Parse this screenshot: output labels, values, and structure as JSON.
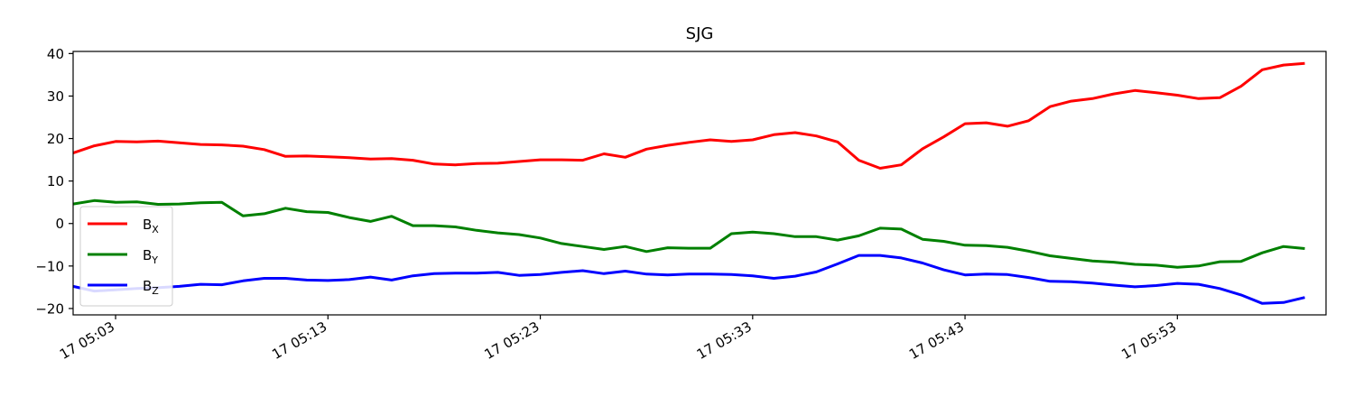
{
  "chart_data": {
    "type": "line",
    "title": "SJG",
    "xlabel": "",
    "ylabel": "",
    "x_start": "17 05:01",
    "x_end": "17 06:00",
    "x_step_minutes": 1,
    "xlim": [
      "17 05:01",
      "17 06:00"
    ],
    "ylim": [
      -21.5,
      40.5
    ],
    "x_tick_labels": [
      "17 05:03",
      "17 05:13",
      "17 05:23",
      "17 05:33",
      "17 05:43",
      "17 05:53"
    ],
    "y_ticks": [
      -20,
      -10,
      0,
      10,
      20,
      30,
      40
    ],
    "legend": {
      "location": "center-left"
    },
    "grid": false,
    "series": [
      {
        "name": "B",
        "subscript": "X",
        "color": "#ff0000",
        "values": [
          16.6,
          18.3,
          19.3,
          19.2,
          19.4,
          19.0,
          18.6,
          18.5,
          18.2,
          17.4,
          15.8,
          15.9,
          15.7,
          15.5,
          15.2,
          15.3,
          14.9,
          14.0,
          13.8,
          14.1,
          14.2,
          14.6,
          15.0,
          15.0,
          14.9,
          16.4,
          15.6,
          17.5,
          18.4,
          19.1,
          19.7,
          19.3,
          19.7,
          20.9,
          21.4,
          20.6,
          19.2,
          14.9,
          13.0,
          13.8,
          17.6,
          20.4,
          23.5,
          23.7,
          22.9,
          24.2,
          27.5,
          28.8,
          29.4,
          30.5,
          31.3,
          30.8,
          30.2,
          29.4,
          29.6,
          32.3,
          36.2,
          37.3,
          37.7
        ]
      },
      {
        "name": "B",
        "subscript": "Y",
        "color": "#008000",
        "values": [
          4.6,
          5.4,
          5.0,
          5.1,
          4.5,
          4.6,
          4.9,
          5.0,
          1.8,
          2.3,
          3.6,
          2.8,
          2.6,
          1.4,
          0.5,
          1.7,
          -0.5,
          -0.5,
          -0.8,
          -1.6,
          -2.2,
          -2.6,
          -3.4,
          -4.7,
          -5.4,
          -6.1,
          -5.4,
          -6.6,
          -5.7,
          -5.8,
          -5.8,
          -2.4,
          -2.0,
          -2.4,
          -3.1,
          -3.1,
          -3.9,
          -2.9,
          -1.1,
          -1.3,
          -3.7,
          -4.2,
          -5.1,
          -5.2,
          -5.6,
          -6.5,
          -7.6,
          -8.2,
          -8.8,
          -9.1,
          -9.6,
          -9.8,
          -10.3,
          -10.0,
          -9.0,
          -8.9,
          -6.9,
          -5.4,
          -5.9
        ]
      },
      {
        "name": "B",
        "subscript": "Z",
        "color": "#0000ff",
        "values": [
          -14.8,
          -15.9,
          -15.6,
          -15.3,
          -15.1,
          -14.8,
          -14.3,
          -14.4,
          -13.5,
          -12.9,
          -12.9,
          -13.3,
          -13.4,
          -13.2,
          -12.6,
          -13.3,
          -12.3,
          -11.8,
          -11.7,
          -11.7,
          -11.5,
          -12.2,
          -12.0,
          -11.5,
          -11.1,
          -11.8,
          -11.2,
          -11.9,
          -12.1,
          -11.9,
          -11.9,
          -12.0,
          -12.3,
          -12.9,
          -12.4,
          -11.4,
          -9.5,
          -7.5,
          -7.5,
          -8.1,
          -9.3,
          -10.9,
          -12.1,
          -11.9,
          -12.0,
          -12.7,
          -13.6,
          -13.7,
          -14.0,
          -14.5,
          -14.9,
          -14.6,
          -14.1,
          -14.3,
          -15.3,
          -16.8,
          -18.8,
          -18.6,
          -17.4
        ]
      }
    ]
  }
}
